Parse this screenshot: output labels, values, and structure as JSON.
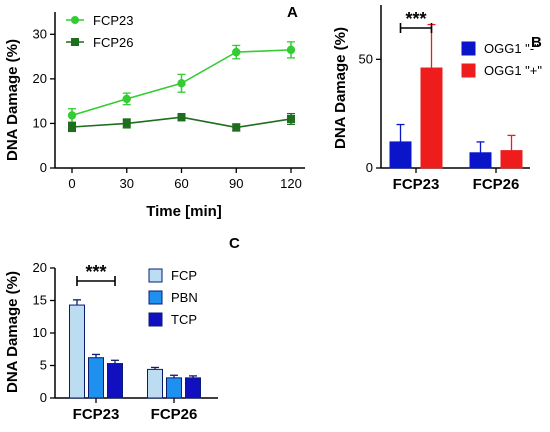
{
  "chart_data": [
    {
      "panel": "A",
      "type": "line",
      "xlabel": "Time [min]",
      "ylabel": "DNA Damage (%)",
      "x": [
        0,
        30,
        60,
        90,
        120
      ],
      "xticks": [
        0,
        30,
        60,
        90,
        120
      ],
      "ylim": [
        0,
        35
      ],
      "yticks": [
        0,
        10,
        20,
        30
      ],
      "legend": "top-left",
      "series": [
        {
          "name": "FCP23",
          "color": "#33cc33",
          "marker": "circle",
          "values": [
            11.8,
            15.5,
            19.0,
            26.0,
            26.5
          ],
          "errors": [
            1.5,
            1.3,
            2.0,
            1.5,
            1.8
          ]
        },
        {
          "name": "FCP26",
          "color": "#1e6e1e",
          "marker": "square",
          "values": [
            9.2,
            10.0,
            11.4,
            9.1,
            11.0
          ],
          "errors": [
            1.0,
            1.0,
            0.8,
            0.8,
            1.2
          ]
        }
      ]
    },
    {
      "panel": "B",
      "type": "bar",
      "ylabel": "DNA Damage (%)",
      "categories": [
        "FCP23",
        "FCP26"
      ],
      "ylim": [
        0,
        75
      ],
      "yticks": [
        0,
        50
      ],
      "legend": "top-right",
      "significance": "***",
      "series": [
        {
          "name": "OGG1 \"-\"",
          "color": "#0a14c8",
          "values": [
            12,
            7
          ],
          "errors": [
            8,
            5
          ]
        },
        {
          "name": "OGG1 \"+\"",
          "color": "#ee1c1c",
          "values": [
            46,
            8
          ],
          "errors": [
            20,
            7
          ]
        }
      ]
    },
    {
      "panel": "C",
      "type": "bar",
      "ylabel": "DNA Damage (%)",
      "categories": [
        "FCP23",
        "FCP26"
      ],
      "ylim": [
        0,
        20
      ],
      "yticks": [
        0,
        5,
        10,
        15,
        20
      ],
      "legend": "top-right",
      "significance": "***",
      "series": [
        {
          "name": "FCP",
          "color": "#bcdcf2",
          "values": [
            14.3,
            4.4
          ],
          "errors": [
            0.8,
            0.3
          ]
        },
        {
          "name": "PBN",
          "color": "#1e90f0",
          "values": [
            6.2,
            3.1
          ],
          "errors": [
            0.5,
            0.4
          ]
        },
        {
          "name": "TCP",
          "color": "#1010c0",
          "values": [
            5.3,
            3.1
          ],
          "errors": [
            0.5,
            0.3
          ]
        }
      ]
    }
  ]
}
